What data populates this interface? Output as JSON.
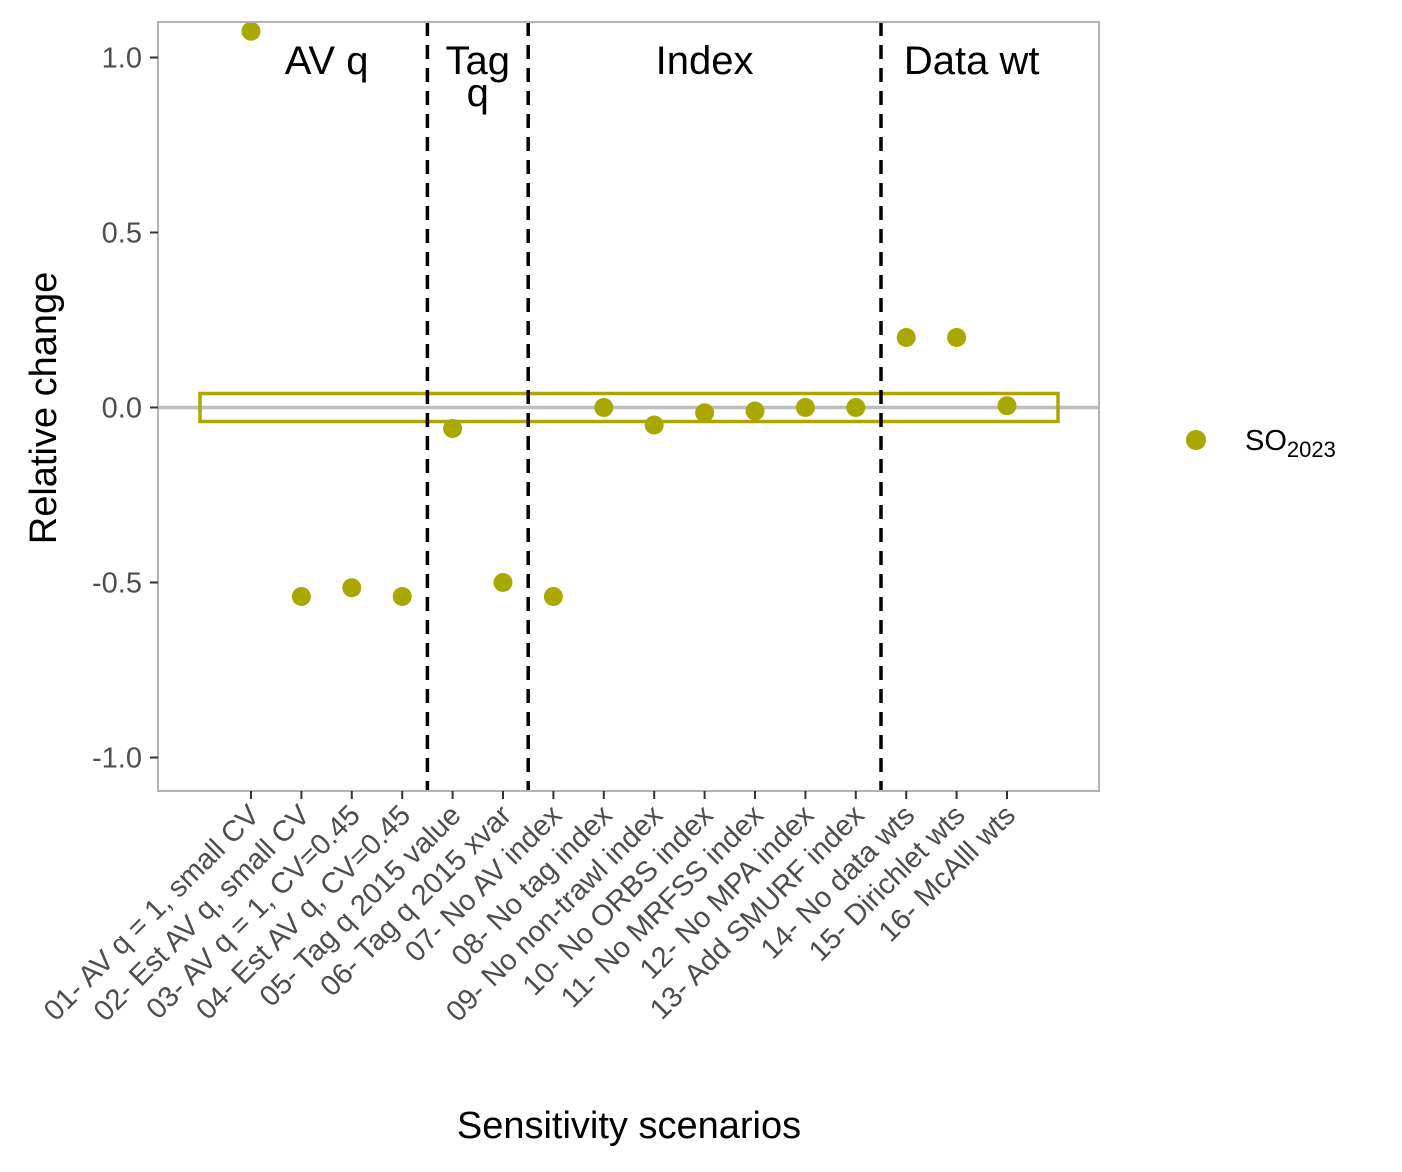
{
  "chart_data": {
    "type": "scatter",
    "xlabel": "Sensitivity scenarios",
    "ylabel": "Relative change",
    "ylim": [
      -1.1,
      1.1
    ],
    "y_ticks": [
      {
        "value": 1.0,
        "label": "1.0"
      },
      {
        "value": 0.5,
        "label": "0.5"
      },
      {
        "value": 0.0,
        "label": "0.0"
      },
      {
        "value": -0.5,
        "label": "-0.5"
      },
      {
        "value": -1.0,
        "label": "-1.0"
      }
    ],
    "categories": [
      "01- AV q = 1, small CV",
      "02- Est AV q, small CV",
      "03- AV q = 1, CV=0.45",
      "04- Est AV q, CV=0.45",
      "05- Tag q 2015 value",
      "06- Tag q 2015 xvar",
      "07- No AV index",
      "08- No tag index",
      "09- No non-trawl index",
      "10- No ORBS index",
      "11- No MRFSS index",
      "12- No MPA index",
      "13- Add SMURF index",
      "14- No data wts",
      "15- Dirichlet wts",
      "16- McAlll wts"
    ],
    "series": [
      {
        "legend_base": "SO",
        "legend_sub": "2023",
        "color": "#a8a800",
        "values": [
          1.075,
          -0.54,
          -0.515,
          -0.54,
          -0.06,
          -0.5,
          -0.54,
          0.0,
          -0.05,
          -0.015,
          -0.01,
          0.0,
          0.0,
          0.2,
          0.2,
          0.005
        ]
      }
    ],
    "reference_line": {
      "y": 0.0,
      "color": "#bebebe"
    },
    "reference_band": {
      "from_category": 1,
      "to_category": 16,
      "ymin": -0.04,
      "ymax": 0.04,
      "color": "#a8a800"
    },
    "group_dividers": [
      4.5,
      6.5,
      13.5
    ],
    "groups": [
      {
        "lines": [
          "AV q"
        ],
        "center": 2.5
      },
      {
        "lines": [
          "Tag",
          "q"
        ],
        "center": 5.5
      },
      {
        "lines": [
          "Index"
        ],
        "center": 10
      },
      {
        "lines": [
          "Data wt"
        ],
        "center": 15.3
      }
    ],
    "legend_position": "right",
    "grid": false
  }
}
